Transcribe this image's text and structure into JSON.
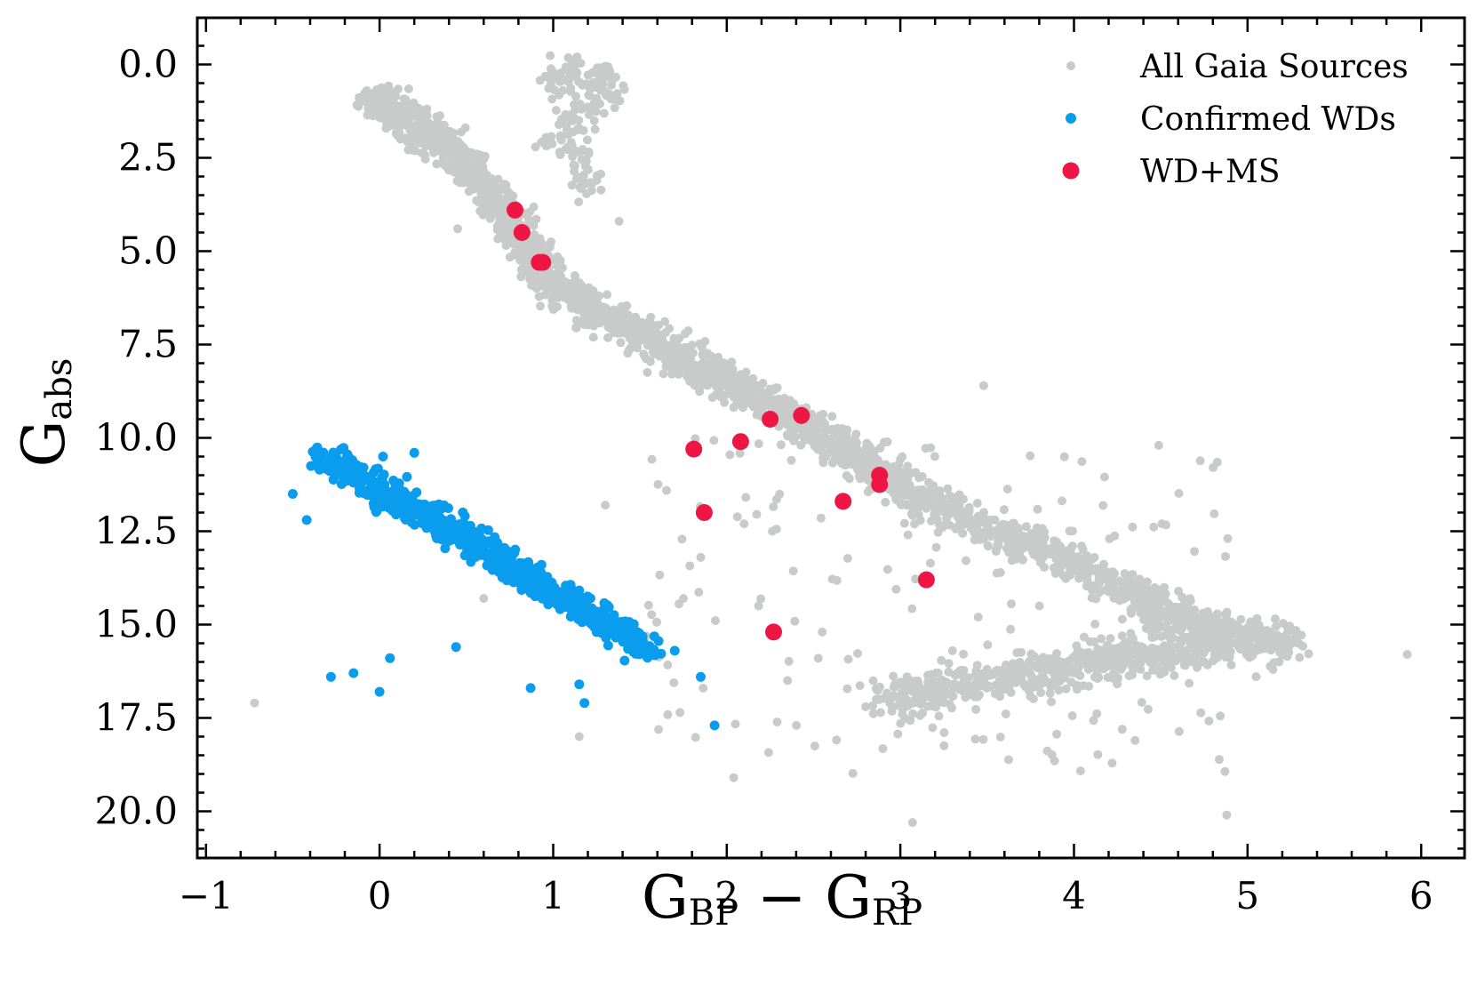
{
  "chart_data": {
    "type": "scatter",
    "title": "",
    "xlabel": {
      "main": "G",
      "sub1": "BP",
      "mid": " − G",
      "sub2": "RP"
    },
    "ylabel": {
      "main": "G",
      "sub": "abs"
    },
    "xlim": [
      -1.05,
      6.25
    ],
    "ylim": [
      21.25,
      -1.25
    ],
    "y_inverted": true,
    "x_ticks": [
      -1,
      0,
      1,
      2,
      3,
      4,
      5,
      6
    ],
    "x_tick_labels": [
      "−1",
      "0",
      "1",
      "2",
      "3",
      "4",
      "5",
      "6"
    ],
    "y_ticks": [
      0,
      2.5,
      5,
      7.5,
      10,
      12.5,
      15,
      17.5,
      20
    ],
    "y_tick_labels": [
      "0.0",
      "2.5",
      "5.0",
      "7.5",
      "10.0",
      "12.5",
      "15.0",
      "17.5",
      "20.0"
    ],
    "legend_position": "top-right",
    "series": [
      {
        "name": "All Gaia Sources",
        "color": "#c8cbc9",
        "marker_size": "small",
        "sample_points": {
          "main_sequence": [
            [
              -0.05,
              0.9
            ],
            [
              0.1,
              1.3
            ],
            [
              0.25,
              1.8
            ],
            [
              0.4,
              2.3
            ],
            [
              0.55,
              3.0
            ],
            [
              0.7,
              3.8
            ],
            [
              0.8,
              4.5
            ],
            [
              0.9,
              5.3
            ],
            [
              1.0,
              5.9
            ],
            [
              1.2,
              6.5
            ],
            [
              1.4,
              7.0
            ],
            [
              1.6,
              7.5
            ],
            [
              1.8,
              8.0
            ],
            [
              2.0,
              8.5
            ],
            [
              2.2,
              9.0
            ],
            [
              2.4,
              9.5
            ],
            [
              2.6,
              10.1
            ],
            [
              2.8,
              10.7
            ],
            [
              3.0,
              11.3
            ],
            [
              3.2,
              11.8
            ],
            [
              3.5,
              12.4
            ],
            [
              3.8,
              13.0
            ],
            [
              4.1,
              13.6
            ],
            [
              4.4,
              14.3
            ],
            [
              4.7,
              14.9
            ],
            [
              5.0,
              15.3
            ],
            [
              5.25,
              15.6
            ]
          ],
          "giant_branch": [
            [
              1.0,
              0.5
            ],
            [
              1.1,
              0.2
            ],
            [
              1.2,
              0.8
            ],
            [
              1.3,
              0.3
            ],
            [
              1.35,
              0.7
            ],
            [
              1.1,
              1.5
            ],
            [
              1.15,
              2.3
            ],
            [
              1.2,
              3.2
            ],
            [
              1.0,
              2.0
            ]
          ],
          "lower_branch": [
            [
              2.9,
              17.0
            ],
            [
              3.2,
              16.8
            ],
            [
              3.5,
              16.5
            ],
            [
              3.8,
              16.3
            ],
            [
              4.1,
              16.0
            ],
            [
              4.4,
              15.8
            ],
            [
              4.7,
              15.6
            ],
            [
              5.0,
              15.5
            ]
          ],
          "scattered": [
            [
              -0.72,
              17.1
            ],
            [
              5.92,
              15.8
            ],
            [
              3.48,
              8.6
            ],
            [
              4.88,
              20.1
            ],
            [
              3.07,
              20.3
            ],
            [
              2.04,
              19.1
            ],
            [
              1.15,
              18.0
            ],
            [
              2.35,
              16.5
            ],
            [
              2.1,
              12.3
            ],
            [
              2.8,
              17.2
            ],
            [
              3.3,
              15.7
            ],
            [
              2.55,
              15.2
            ],
            [
              1.3,
              11.8
            ],
            [
              1.75,
              14.3
            ],
            [
              0.6,
              14.3
            ],
            [
              0.45,
              4.4
            ],
            [
              1.38,
              4.2
            ],
            [
              1.85,
              13.2
            ]
          ]
        }
      },
      {
        "name": "Confirmed WDs",
        "color": "#0b9ded",
        "marker_size": "small",
        "band_from": [
          -0.35,
          10.4
        ],
        "band_to": [
          1.55,
          15.6
        ],
        "outliers": [
          [
            -0.28,
            16.4
          ],
          [
            -0.15,
            16.3
          ],
          [
            0.0,
            16.8
          ],
          [
            0.06,
            15.9
          ],
          [
            0.44,
            15.6
          ],
          [
            0.87,
            16.7
          ],
          [
            1.15,
            16.6
          ],
          [
            1.18,
            17.1
          ],
          [
            1.25,
            15.2
          ],
          [
            1.93,
            17.7
          ],
          [
            1.85,
            16.4
          ],
          [
            1.7,
            15.7
          ],
          [
            0.2,
            10.4
          ],
          [
            0.02,
            10.5
          ],
          [
            -0.5,
            11.5
          ],
          [
            -0.42,
            12.2
          ]
        ]
      },
      {
        "name": "WD+MS",
        "color": "#ee1644",
        "marker_size": "large",
        "points": [
          [
            0.78,
            3.9
          ],
          [
            0.82,
            4.5
          ],
          [
            0.92,
            5.3
          ],
          [
            0.94,
            5.3
          ],
          [
            1.81,
            10.3
          ],
          [
            2.08,
            10.1
          ],
          [
            2.25,
            9.5
          ],
          [
            2.43,
            9.4
          ],
          [
            1.87,
            12.0
          ],
          [
            2.67,
            11.7
          ],
          [
            2.88,
            11.0
          ],
          [
            2.88,
            11.25
          ],
          [
            3.15,
            13.8
          ],
          [
            2.27,
            15.2
          ]
        ]
      }
    ]
  }
}
